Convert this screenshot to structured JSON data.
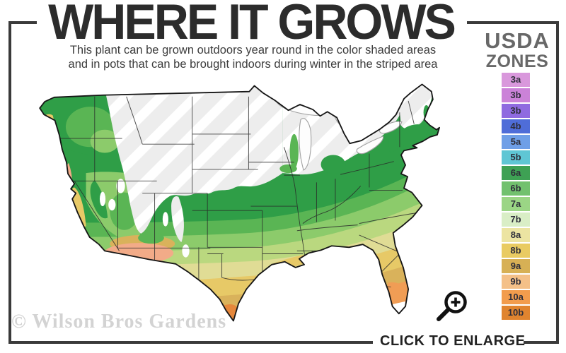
{
  "header": {
    "title": "WHERE IT GROWS",
    "subtitle_line1": "This plant can be grown outdoors year round in the color shaded areas",
    "subtitle_line2": "and in pots that can be brought indoors during winter in the striped area"
  },
  "legend": {
    "title_line1": "USDA",
    "title_line2": "ZONES",
    "zones": [
      {
        "label": "3a",
        "color": "#d998dc"
      },
      {
        "label": "3b",
        "color": "#cb82d8"
      },
      {
        "label": "3b",
        "color": "#8f6ae0"
      },
      {
        "label": "4b",
        "color": "#4f6dd8"
      },
      {
        "label": "5a",
        "color": "#6f9fe7"
      },
      {
        "label": "5b",
        "color": "#5fc6d4"
      },
      {
        "label": "6a",
        "color": "#3ea154"
      },
      {
        "label": "6b",
        "color": "#72c16e"
      },
      {
        "label": "7a",
        "color": "#9bd585"
      },
      {
        "label": "7b",
        "color": "#d9eec6"
      },
      {
        "label": "8a",
        "color": "#ece4a2"
      },
      {
        "label": "8b",
        "color": "#e9cb62"
      },
      {
        "label": "9a",
        "color": "#d7b055"
      },
      {
        "label": "9b",
        "color": "#f4c088"
      },
      {
        "label": "10a",
        "color": "#f29c4d"
      },
      {
        "label": "10b",
        "color": "#e0842f"
      }
    ]
  },
  "map": {
    "watermark": "© Wilson Bros Gardens",
    "colors": {
      "band-dark-green": "#2f9e47",
      "band-green": "#5ab554",
      "band-light-green": "#8ccb6b",
      "band-yellow-green": "#bad87f",
      "band-pale-yellow": "#e0dc95",
      "band-gold": "#e7c967",
      "band-tan": "#d9b25b",
      "band-orange": "#f09d55",
      "band-deep-orange": "#e5873b",
      "coast-salmon": "#f2ab88",
      "stripe-base": "#ededed",
      "stripe-line": "#ffffff"
    }
  },
  "footer": {
    "enlarge_label": "CLICK TO ENLARGE",
    "magnifier_icon": "magnifier-plus-icon"
  },
  "ui_colors": {
    "frame": "#3a3a3a",
    "title": "#2c2c2c",
    "subtitle": "#3c3c3c",
    "legend_title": "#686868",
    "watermark": "#d3d3d3",
    "enlarge_text": "#222222",
    "state_line": "#2a2a2a",
    "map_outline": "#161616",
    "lake_stroke": "#a2a2a2"
  }
}
